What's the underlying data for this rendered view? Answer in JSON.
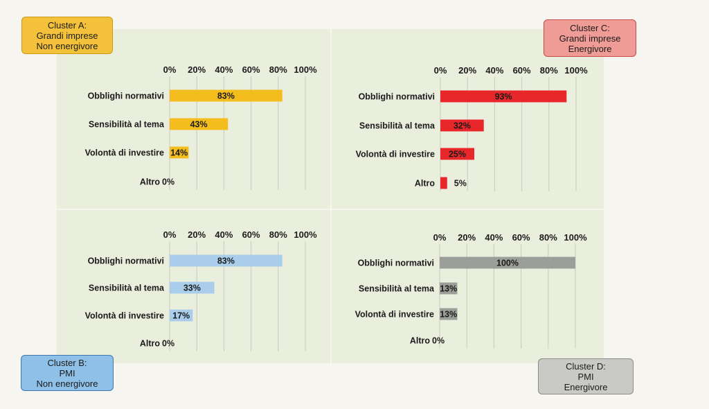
{
  "colors": {
    "cluster_a": "#f3bd1e",
    "cluster_b": "#a9cdeb",
    "cluster_c": "#e8272b",
    "cluster_d": "#9c9e9a",
    "label_a_bg": "#f4c13a",
    "label_b_bg": "#8ec0e8",
    "label_c_bg": "#ef9c97",
    "label_d_bg": "#c9c9c5",
    "grid": "#c9cbbf"
  },
  "labels": {
    "a": [
      "Cluster A:",
      "Grandi imprese",
      "Non energivore"
    ],
    "b": [
      "Cluster B:",
      "PMI",
      "Non energivore"
    ],
    "c": [
      "Cluster C:",
      "Grandi imprese",
      "Energivore"
    ],
    "d": [
      "Cluster D:",
      "PMI",
      "Energivore"
    ]
  },
  "chart_data": [
    {
      "type": "bar",
      "orientation": "horizontal",
      "panel": "top-left",
      "categories": [
        "Obblighi normativi",
        "Sensibilità al tema",
        "Volontà di investire",
        "Altro"
      ],
      "values": [
        83,
        43,
        14,
        0
      ],
      "value_labels": [
        "83%",
        "43%",
        "14%",
        "0%"
      ],
      "xticks": [
        "0%",
        "20%",
        "40%",
        "60%",
        "80%",
        "100%"
      ],
      "xlim": [
        0,
        100
      ],
      "grid": true,
      "color": "#f3bd1e"
    },
    {
      "type": "bar",
      "orientation": "horizontal",
      "panel": "top-right",
      "categories": [
        "Obblighi normativi",
        "Sensibilità al tema",
        "Volontà di investire",
        "Altro"
      ],
      "values": [
        93,
        32,
        25,
        5
      ],
      "value_labels": [
        "93%",
        "32%",
        "25%",
        "5%"
      ],
      "xticks": [
        "0%",
        "20%",
        "40%",
        "60%",
        "80%",
        "100%"
      ],
      "xlim": [
        0,
        100
      ],
      "grid": true,
      "color": "#e8272b"
    },
    {
      "type": "bar",
      "orientation": "horizontal",
      "panel": "bottom-left",
      "categories": [
        "Obblighi normativi",
        "Sensibilità al tema",
        "Volontà di investire",
        "Altro"
      ],
      "values": [
        83,
        33,
        17,
        0
      ],
      "value_labels": [
        "83%",
        "33%",
        "17%",
        "0%"
      ],
      "xticks": [
        "0%",
        "20%",
        "40%",
        "60%",
        "80%",
        "100%"
      ],
      "xlim": [
        0,
        100
      ],
      "grid": true,
      "color": "#a9cdeb"
    },
    {
      "type": "bar",
      "orientation": "horizontal",
      "panel": "bottom-right",
      "categories": [
        "Obblighi normativi",
        "Sensibilità al tema",
        "Volontà di investire",
        "Altro"
      ],
      "values": [
        100,
        13,
        13,
        0
      ],
      "value_labels": [
        "100%",
        "13%",
        "13%",
        "0%"
      ],
      "xticks": [
        "0%",
        "20%",
        "40%",
        "60%",
        "80%",
        "100%"
      ],
      "xlim": [
        0,
        100
      ],
      "grid": true,
      "color": "#9c9e9a"
    }
  ]
}
